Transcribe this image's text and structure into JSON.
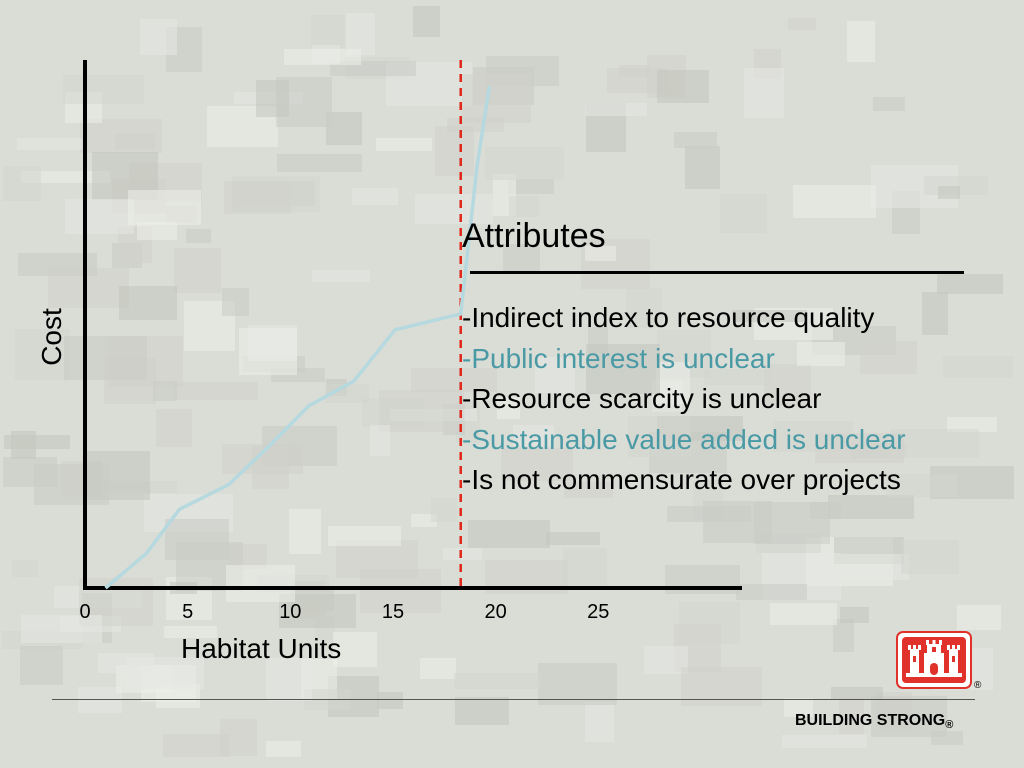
{
  "chart_data": {
    "type": "line",
    "xlabel": "Habitat Units",
    "ylabel": "Cost",
    "xlim": [
      0,
      32
    ],
    "ylim": [
      0,
      100
    ],
    "xticks": [
      0,
      5,
      10,
      15,
      20,
      25
    ],
    "series": [
      {
        "x": [
          1,
          3,
          4.6,
          7,
          8.9,
          10.9,
          13.1,
          15.1,
          18.3,
          19.1,
          19.7
        ],
        "y": [
          0,
          6.6,
          14.9,
          19.6,
          26.6,
          34.5,
          39.2,
          48.9,
          51.9,
          80,
          95.1
        ]
      }
    ],
    "threshold_x": 18.3,
    "grid": false,
    "colors": {
      "line": "#b5d9df",
      "threshold": "#e0261b",
      "axes": "#000000"
    }
  },
  "attributes": {
    "title": "Attributes",
    "items": [
      {
        "text": "-Indirect index to resource quality",
        "color": "#000000"
      },
      {
        "text": "-Public interest is unclear",
        "color": "#4a9aa6"
      },
      {
        "text": "-Resource scarcity is unclear",
        "color": "#000000"
      },
      {
        "text": "-Sustainable value added is unclear",
        "color": "#4a9aa6"
      },
      {
        "text": "-Is not commensurate over projects",
        "color": "#000000"
      }
    ]
  },
  "footer": {
    "slogan": "BUILDING STRONG",
    "registered_mark": "®"
  },
  "logo": {
    "icon": "castle-icon",
    "color": "#e0312b"
  }
}
